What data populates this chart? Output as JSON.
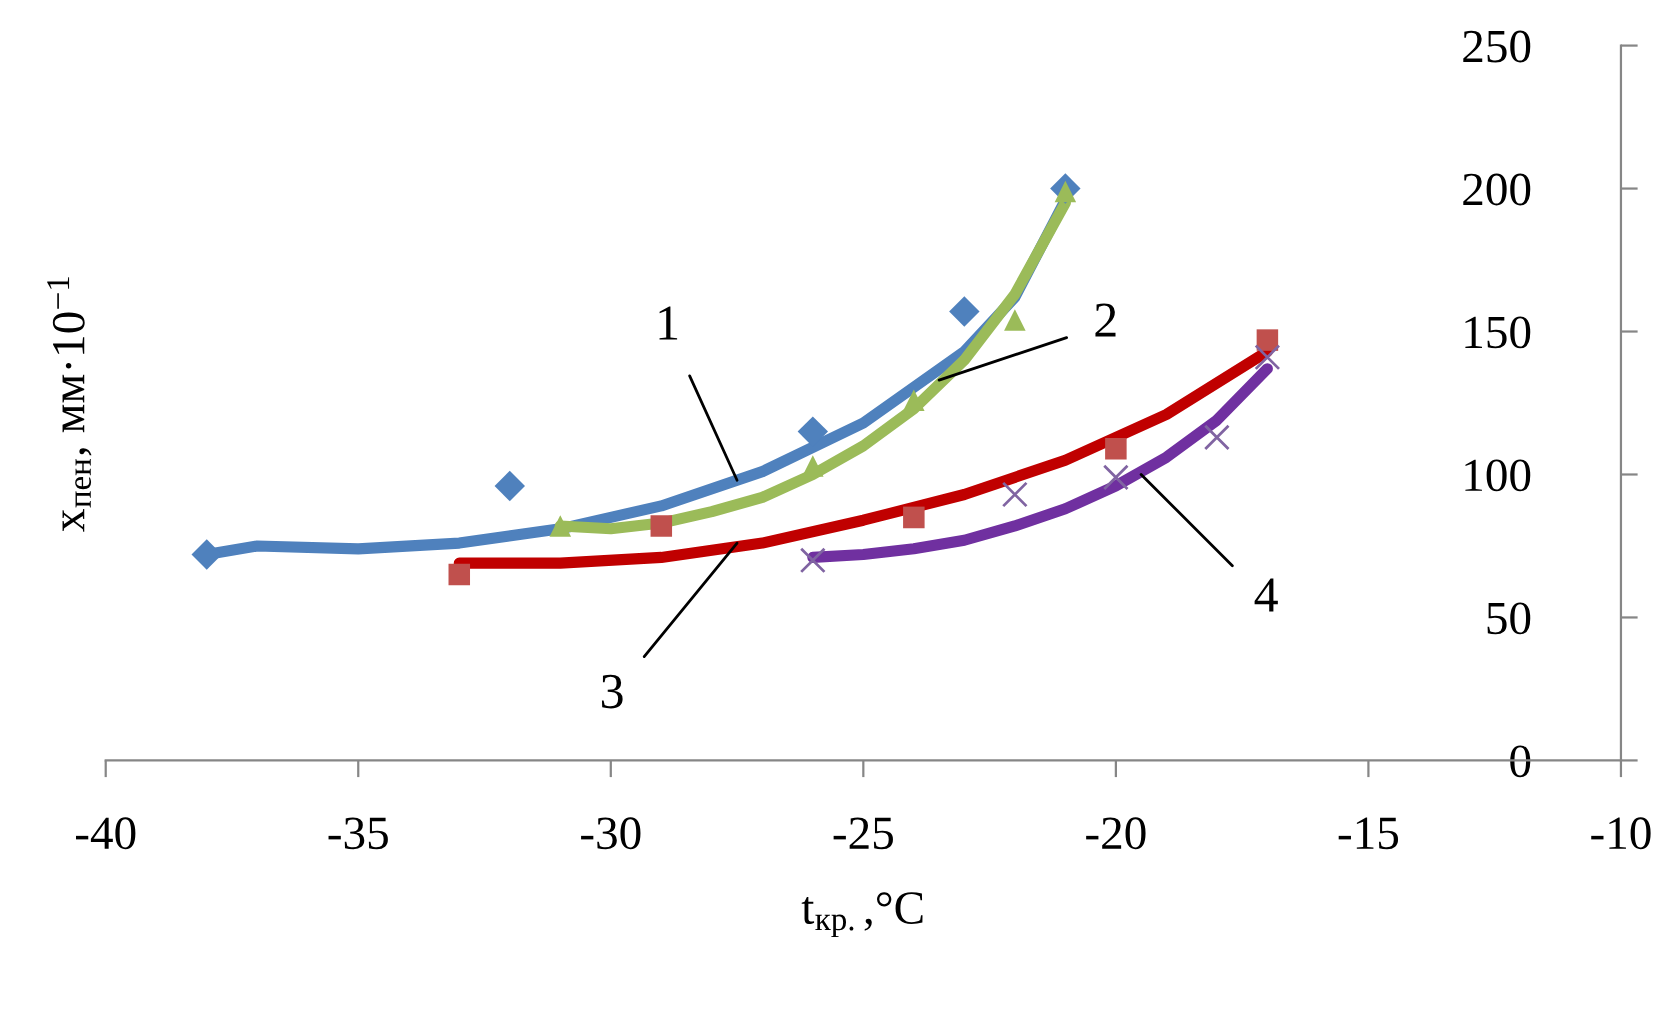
{
  "chart_data": {
    "type": "scatter",
    "xlabel": "t$_{кр.}$,°C",
    "ylabel": "x$_{пен}$, мм·10$^{−1}$",
    "xlim": [
      -40,
      -10
    ],
    "xticks": [
      -40,
      -35,
      -30,
      -25,
      -20,
      -15,
      -10
    ],
    "ylim": [
      0,
      250
    ],
    "yticks": [
      0,
      50,
      100,
      150,
      200,
      250
    ],
    "grid": false,
    "legend": false,
    "series": [
      {
        "marker": "diamond",
        "color": "#4f81bd",
        "x": [
          -38,
          -32,
          -26,
          -23,
          -21
        ],
        "values": [
          72,
          96,
          115,
          157,
          200
        ]
      },
      {
        "marker": "triangle",
        "color": "#9bbb59",
        "x": [
          -31,
          -26,
          -24,
          -22,
          -21
        ],
        "values": [
          82,
          103,
          126,
          154,
          199
        ]
      },
      {
        "marker": "square",
        "color": "#c0504d",
        "x": [
          -33,
          -29,
          -24,
          -20,
          -17
        ],
        "values": [
          65,
          82,
          85,
          109,
          147
        ]
      },
      {
        "marker": "cross",
        "color": "#8064a2",
        "x": [
          -26,
          -22,
          -20,
          -18,
          -17
        ],
        "values": [
          70,
          93,
          99,
          113,
          141
        ]
      },
      {
        "type": "line",
        "color": "#4f81bd",
        "x": [
          -38,
          -37,
          -35,
          -33,
          -31,
          -29,
          -27,
          -25,
          -23,
          -22,
          -21
        ],
        "values": [
          72,
          75,
          74,
          76,
          81,
          89,
          101,
          118,
          143,
          162,
          196
        ]
      },
      {
        "type": "line",
        "color": "#9bbb59",
        "x": [
          -31,
          -30,
          -29,
          -28,
          -27,
          -26,
          -25,
          -24,
          -23,
          -22,
          -21
        ],
        "values": [
          82,
          81,
          83,
          87,
          92,
          100,
          110,
          123,
          140,
          163,
          195
        ]
      },
      {
        "type": "line",
        "color": "#c00000",
        "x": [
          -33,
          -31,
          -29,
          -27,
          -25,
          -23,
          -21,
          -19,
          -17
        ],
        "values": [
          69,
          69,
          71,
          76,
          84,
          93,
          105,
          121,
          143
        ]
      },
      {
        "type": "line",
        "color": "#7030a0",
        "x": [
          -26,
          -25,
          -24,
          -23,
          -22,
          -21,
          -20,
          -19,
          -18,
          -17
        ],
        "values": [
          71,
          72,
          74,
          77,
          82,
          88,
          96,
          106,
          119,
          137
        ]
      }
    ],
    "annotations": [
      {
        "text": "1",
        "x": -27.5,
        "y": 98
      },
      {
        "text": "2",
        "x": -23.5,
        "y": 133
      },
      {
        "text": "3",
        "x": -27.5,
        "y": 76
      },
      {
        "text": "4",
        "x": -19.5,
        "y": 100
      }
    ]
  }
}
